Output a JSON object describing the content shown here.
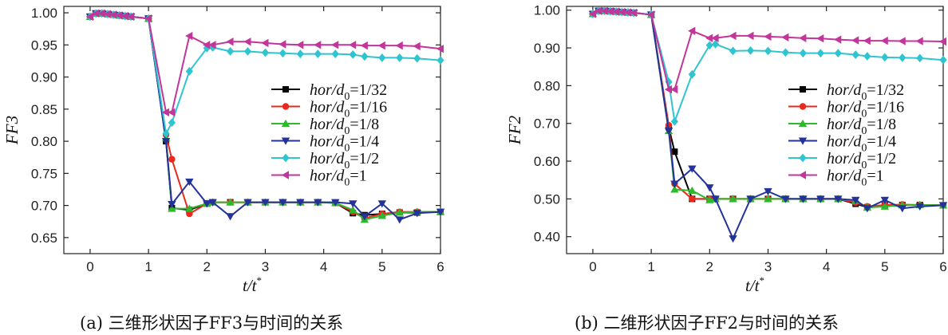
{
  "chart_data": [
    {
      "type": "line",
      "panel": "a",
      "caption": "(a) 三维形状因子FF3与时间的关系",
      "xlabel": "t/t*",
      "ylabel": "FF3",
      "xlim": [
        -0.45,
        6
      ],
      "ylim": [
        0.625,
        1.01
      ],
      "xticks": [
        0,
        1,
        2,
        3,
        4,
        5,
        6
      ],
      "yticks": [
        0.65,
        0.7,
        0.75,
        0.8,
        0.85,
        0.9,
        0.95,
        1.0
      ],
      "ytick_labels": [
        "0.65",
        "0.70",
        "0.75",
        "0.80",
        "0.85",
        "0.90",
        "0.95",
        "1.00"
      ],
      "legend_position": "right-middle",
      "x": [
        0,
        0.1,
        0.2,
        0.3,
        0.4,
        0.5,
        0.6,
        0.7,
        1.0,
        1.3,
        1.4,
        1.7,
        2.0,
        2.1,
        2.4,
        2.7,
        3.0,
        3.3,
        3.6,
        3.9,
        4.2,
        4.5,
        4.7,
        5.0,
        5.3,
        5.6,
        6.0
      ],
      "series": [
        {
          "name": "hor/d0=1/32",
          "color": "#000000",
          "marker": "square",
          "values": [
            0.994,
            0.999,
            0.999,
            0.998,
            0.997,
            0.996,
            0.995,
            0.994,
            0.991,
            0.8,
            0.696,
            0.693,
            0.703,
            0.705,
            0.705,
            0.705,
            0.705,
            0.705,
            0.705,
            0.705,
            0.704,
            0.688,
            0.685,
            0.687,
            0.689,
            0.689,
            0.69
          ]
        },
        {
          "name": "hor/d0=1/16",
          "color": "#e8291c",
          "marker": "circle",
          "values": [
            0.994,
            0.999,
            0.999,
            0.998,
            0.997,
            0.996,
            0.995,
            0.994,
            0.991,
            0.81,
            0.772,
            0.687,
            0.703,
            0.705,
            0.705,
            0.705,
            0.705,
            0.705,
            0.705,
            0.705,
            0.704,
            0.69,
            0.68,
            0.687,
            0.69,
            0.69,
            0.69
          ]
        },
        {
          "name": "hor/d0=1/8",
          "color": "#2eb82e",
          "marker": "triangle-up",
          "values": [
            0.994,
            0.999,
            0.999,
            0.998,
            0.997,
            0.996,
            0.995,
            0.994,
            0.991,
            0.805,
            0.695,
            0.695,
            0.703,
            0.705,
            0.705,
            0.705,
            0.705,
            0.705,
            0.705,
            0.705,
            0.704,
            0.693,
            0.678,
            0.684,
            0.689,
            0.69,
            0.69
          ]
        },
        {
          "name": "hor/d0=1/4",
          "color": "#23339a",
          "marker": "triangle-down",
          "values": [
            0.994,
            0.999,
            0.999,
            0.998,
            0.997,
            0.996,
            0.995,
            0.994,
            0.991,
            0.8,
            0.702,
            0.737,
            0.703,
            0.705,
            0.683,
            0.705,
            0.705,
            0.705,
            0.705,
            0.705,
            0.705,
            0.703,
            0.683,
            0.703,
            0.678,
            0.688,
            0.69
          ]
        },
        {
          "name": "hor/d0=1/2",
          "color": "#2ec4d0",
          "marker": "diamond",
          "values": [
            0.994,
            0.999,
            0.999,
            0.998,
            0.997,
            0.996,
            0.995,
            0.994,
            0.991,
            0.812,
            0.829,
            0.909,
            0.945,
            0.946,
            0.94,
            0.94,
            0.938,
            0.937,
            0.936,
            0.936,
            0.936,
            0.935,
            0.932,
            0.93,
            0.93,
            0.929,
            0.926
          ]
        },
        {
          "name": "hor/d0=1",
          "color": "#c2359a",
          "marker": "triangle-left",
          "values": [
            0.994,
            0.999,
            0.999,
            0.998,
            0.997,
            0.996,
            0.995,
            0.994,
            0.991,
            0.845,
            0.845,
            0.964,
            0.95,
            0.95,
            0.955,
            0.955,
            0.953,
            0.951,
            0.95,
            0.95,
            0.95,
            0.95,
            0.949,
            0.949,
            0.949,
            0.948,
            0.944
          ]
        }
      ]
    },
    {
      "type": "line",
      "panel": "b",
      "caption": "(b) 二维形状因子FF2与时间的关系",
      "xlabel": "t/t*",
      "ylabel": "FF2",
      "xlim": [
        -0.45,
        6
      ],
      "ylim": [
        0.355,
        1.01
      ],
      "xticks": [
        0,
        1,
        2,
        3,
        4,
        5,
        6
      ],
      "yticks": [
        0.4,
        0.5,
        0.6,
        0.7,
        0.8,
        0.9,
        1.0
      ],
      "ytick_labels": [
        "0.40",
        "0.50",
        "0.60",
        "0.70",
        "0.80",
        "0.90",
        "1.00"
      ],
      "legend_position": "right-middle",
      "x": [
        0,
        0.1,
        0.2,
        0.3,
        0.4,
        0.5,
        0.6,
        0.7,
        1.0,
        1.3,
        1.4,
        1.7,
        2.0,
        2.1,
        2.4,
        2.7,
        3.0,
        3.3,
        3.6,
        3.9,
        4.2,
        4.5,
        4.7,
        5.0,
        5.3,
        5.6,
        6.0
      ],
      "series": [
        {
          "name": "hor/d0=1/32",
          "color": "#000000",
          "marker": "square",
          "values": [
            0.99,
            0.998,
            0.998,
            0.997,
            0.996,
            0.995,
            0.994,
            0.993,
            0.988,
            0.69,
            0.625,
            0.5,
            0.5,
            0.5,
            0.5,
            0.5,
            0.5,
            0.5,
            0.5,
            0.5,
            0.5,
            0.487,
            0.478,
            0.483,
            0.484,
            0.484,
            0.483
          ]
        },
        {
          "name": "hor/d0=1/16",
          "color": "#e8291c",
          "marker": "circle",
          "values": [
            0.99,
            0.998,
            0.998,
            0.997,
            0.996,
            0.995,
            0.994,
            0.993,
            0.988,
            0.695,
            0.54,
            0.5,
            0.5,
            0.5,
            0.5,
            0.5,
            0.5,
            0.5,
            0.5,
            0.5,
            0.5,
            0.49,
            0.48,
            0.484,
            0.485,
            0.484,
            0.483
          ]
        },
        {
          "name": "hor/d0=1/8",
          "color": "#2eb82e",
          "marker": "triangle-up",
          "values": [
            0.99,
            0.998,
            0.998,
            0.997,
            0.996,
            0.995,
            0.994,
            0.993,
            0.988,
            0.68,
            0.525,
            0.522,
            0.497,
            0.5,
            0.5,
            0.5,
            0.5,
            0.5,
            0.5,
            0.5,
            0.5,
            0.495,
            0.477,
            0.48,
            0.483,
            0.484,
            0.483
          ]
        },
        {
          "name": "hor/d0=1/4",
          "color": "#23339a",
          "marker": "triangle-down",
          "values": [
            0.99,
            0.998,
            0.998,
            0.997,
            0.996,
            0.995,
            0.994,
            0.993,
            0.988,
            0.68,
            0.54,
            0.58,
            0.53,
            0.5,
            0.395,
            0.5,
            0.52,
            0.5,
            0.5,
            0.5,
            0.5,
            0.497,
            0.475,
            0.497,
            0.475,
            0.48,
            0.483
          ]
        },
        {
          "name": "hor/d0=1/2",
          "color": "#2ec4d0",
          "marker": "diamond",
          "values": [
            0.99,
            0.998,
            0.998,
            0.997,
            0.996,
            0.995,
            0.994,
            0.993,
            0.988,
            0.81,
            0.705,
            0.83,
            0.907,
            0.91,
            0.892,
            0.893,
            0.892,
            0.888,
            0.886,
            0.886,
            0.886,
            0.882,
            0.878,
            0.875,
            0.874,
            0.873,
            0.868
          ]
        },
        {
          "name": "hor/d0=1",
          "color": "#c2359a",
          "marker": "triangle-left",
          "values": [
            0.99,
            0.998,
            0.998,
            0.997,
            0.996,
            0.995,
            0.994,
            0.993,
            0.988,
            0.79,
            0.79,
            0.945,
            0.926,
            0.926,
            0.932,
            0.932,
            0.93,
            0.928,
            0.926,
            0.925,
            0.922,
            0.92,
            0.919,
            0.919,
            0.918,
            0.918,
            0.917
          ]
        }
      ]
    }
  ]
}
